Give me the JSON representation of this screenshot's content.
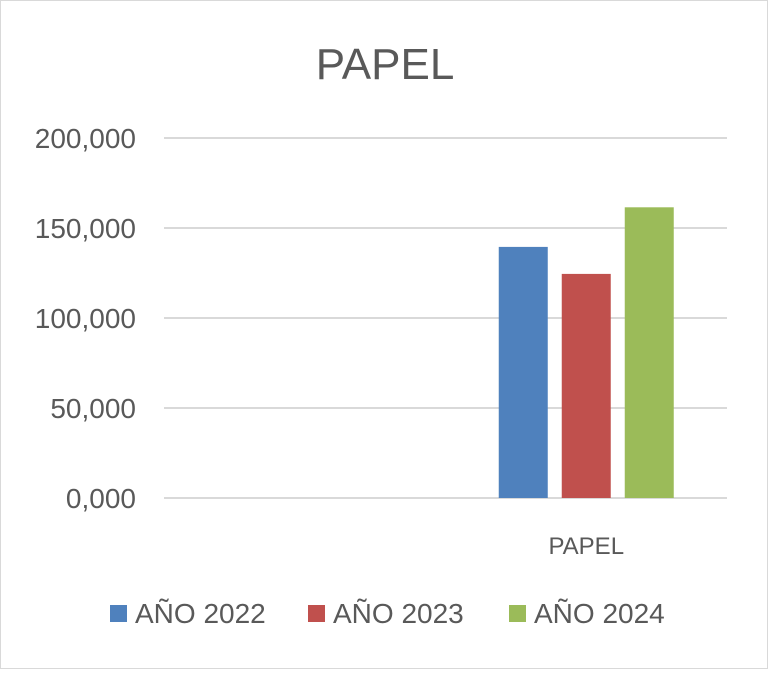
{
  "chart_data": {
    "type": "bar",
    "title": "PAPEL",
    "categories": [
      "",
      "PAPEL"
    ],
    "series": [
      {
        "name": "AÑO 2022",
        "color": "#4f81bd",
        "values": [
          null,
          139500
        ]
      },
      {
        "name": "AÑO 2023",
        "color": "#c0504d",
        "values": [
          null,
          124500
        ]
      },
      {
        "name": "AÑO 2024",
        "color": "#9bbb59",
        "values": [
          null,
          161500
        ]
      }
    ],
    "ylim": [
      0,
      200000
    ],
    "yticks": [
      0,
      50000,
      100000,
      150000,
      200000
    ],
    "ytick_labels": [
      "0,000",
      "50,000",
      "100,000",
      "150,000",
      "200,000"
    ],
    "grid": true,
    "legend_position": "bottom"
  }
}
